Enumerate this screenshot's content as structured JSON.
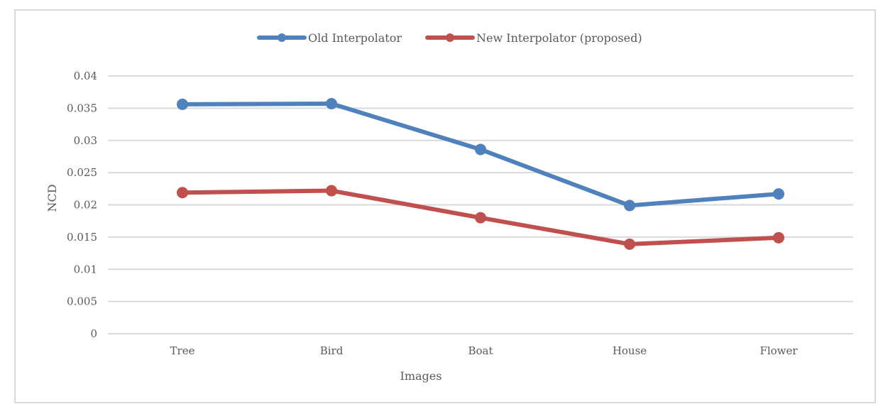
{
  "chart_data": {
    "type": "line",
    "title": "",
    "xlabel": "Images",
    "ylabel": "NCD",
    "categories": [
      "Tree",
      "Bird",
      "Boat",
      "House",
      "Flower"
    ],
    "ylim": [
      0,
      0.04
    ],
    "yticks": [
      "0",
      "0.005",
      "0.01",
      "0.015",
      "0.02",
      "0.025",
      "0.03",
      "0.035",
      "0.04"
    ],
    "grid": true,
    "legend_position": "top",
    "series": [
      {
        "name": "Old Interpolator",
        "color": "#4f81bd",
        "values": [
          0.0356,
          0.0357,
          0.0286,
          0.0199,
          0.0217
        ]
      },
      {
        "name": "New Interpolator (proposed)",
        "color": "#c0504d",
        "values": [
          0.0219,
          0.0222,
          0.018,
          0.0139,
          0.0149
        ]
      }
    ]
  }
}
